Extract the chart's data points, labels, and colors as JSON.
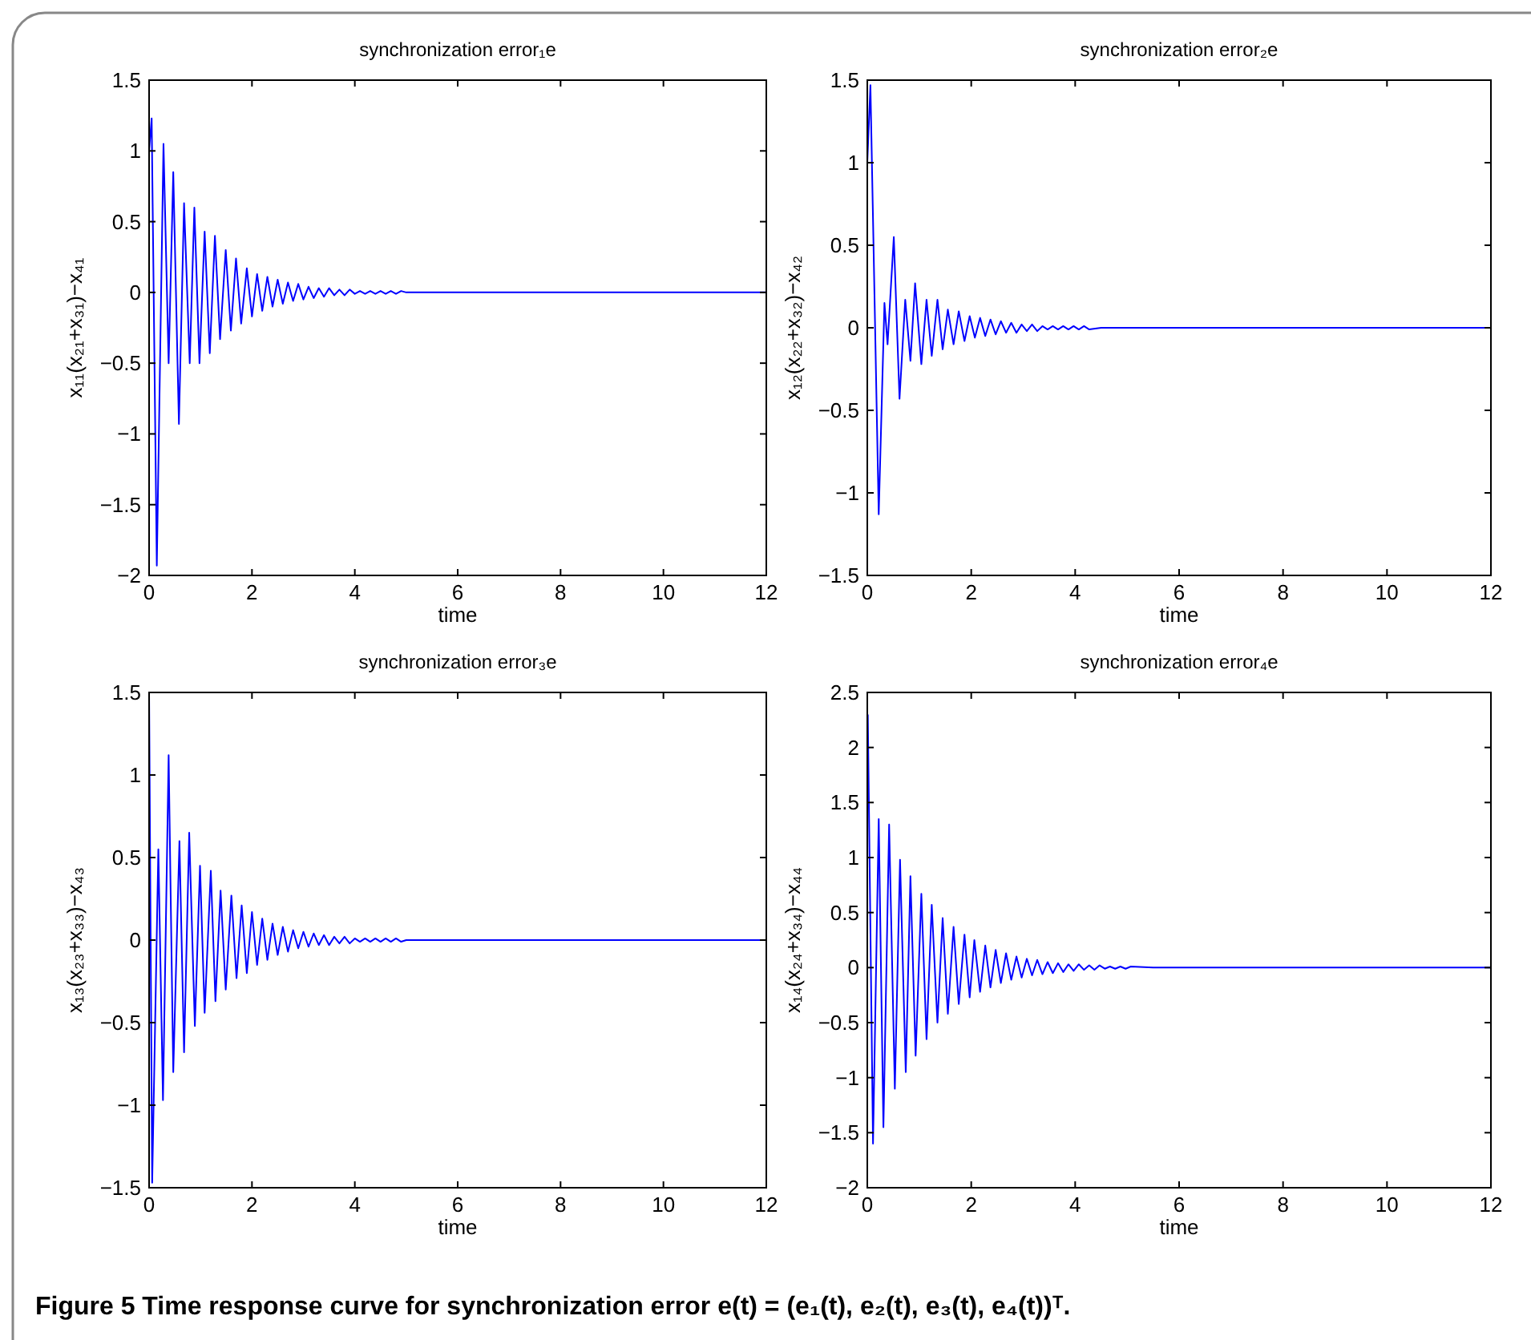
{
  "chart_data": [
    {
      "type": "line",
      "title": "synchronization error₁e",
      "xlabel": "time",
      "ylabel": "x₁₁(x₂₁+x₃₁)−x₄₁",
      "xlim": [
        0,
        12
      ],
      "xticks": [
        0,
        2,
        4,
        6,
        8,
        10,
        12
      ],
      "ylim": [
        -2,
        1.5
      ],
      "yticks": [
        -2,
        -1.5,
        -1,
        -0.5,
        0,
        0.5,
        1,
        1.5
      ],
      "series": [
        {
          "color": "#0000ff",
          "x": [
            0,
            0.05,
            0.15,
            0.28,
            0.38,
            0.47,
            0.58,
            0.68,
            0.79,
            0.88,
            0.98,
            1.08,
            1.18,
            1.28,
            1.38,
            1.49,
            1.59,
            1.69,
            1.79,
            1.9,
            2.0,
            2.1,
            2.2,
            2.3,
            2.4,
            2.5,
            2.6,
            2.7,
            2.8,
            2.9,
            3.0,
            3.1,
            3.2,
            3.3,
            3.4,
            3.5,
            3.6,
            3.7,
            3.8,
            3.9,
            4.0,
            4.1,
            4.2,
            4.3,
            4.4,
            4.5,
            4.6,
            4.7,
            4.8,
            4.9,
            5.0,
            12
          ],
          "values": [
            1.0,
            1.23,
            -1.93,
            1.05,
            -0.5,
            0.85,
            -0.93,
            0.63,
            -0.5,
            0.6,
            -0.5,
            0.43,
            -0.43,
            0.4,
            -0.33,
            0.3,
            -0.27,
            0.24,
            -0.22,
            0.17,
            -0.17,
            0.13,
            -0.13,
            0.11,
            -0.1,
            0.09,
            -0.08,
            0.07,
            -0.06,
            0.06,
            -0.05,
            0.04,
            -0.04,
            0.03,
            -0.03,
            0.03,
            -0.02,
            0.02,
            -0.02,
            0.02,
            -0.01,
            0.01,
            -0.01,
            0.01,
            -0.01,
            0.01,
            -0.01,
            0.01,
            -0.01,
            0.01,
            0,
            0
          ]
        }
      ]
    },
    {
      "type": "line",
      "title": "synchronization error₂e",
      "xlabel": "time",
      "ylabel": "x₁₂(x₂₂+x₃₂)−x₄₂",
      "xlim": [
        0,
        12
      ],
      "xticks": [
        0,
        2,
        4,
        6,
        8,
        10,
        12
      ],
      "ylim": [
        -1.5,
        1.5
      ],
      "yticks": [
        -1.5,
        -1,
        -0.5,
        0,
        0.5,
        1,
        1.5
      ],
      "series": [
        {
          "color": "#0000ff",
          "x": [
            0,
            0.06,
            0.22,
            0.33,
            0.39,
            0.51,
            0.62,
            0.73,
            0.83,
            0.92,
            1.04,
            1.14,
            1.24,
            1.35,
            1.45,
            1.55,
            1.66,
            1.76,
            1.87,
            1.97,
            2.07,
            2.17,
            2.27,
            2.37,
            2.47,
            2.57,
            2.67,
            2.77,
            2.87,
            2.97,
            3.07,
            3.17,
            3.27,
            3.37,
            3.47,
            3.57,
            3.67,
            3.77,
            3.87,
            3.97,
            4.07,
            4.17,
            4.27,
            4.5,
            12
          ],
          "values": [
            1.0,
            1.47,
            -1.13,
            0.15,
            -0.1,
            0.55,
            -0.43,
            0.17,
            -0.2,
            0.27,
            -0.22,
            0.17,
            -0.17,
            0.17,
            -0.13,
            0.11,
            -0.1,
            0.1,
            -0.08,
            0.07,
            -0.06,
            0.06,
            -0.05,
            0.05,
            -0.04,
            0.04,
            -0.03,
            0.03,
            -0.03,
            0.02,
            -0.02,
            0.02,
            -0.02,
            0.01,
            -0.01,
            0.01,
            -0.01,
            0.01,
            -0.01,
            0.01,
            -0.01,
            0.01,
            -0.01,
            0,
            0
          ]
        }
      ]
    },
    {
      "type": "line",
      "title": "synchronization error₃e",
      "xlabel": "time",
      "ylabel": "x₁₃(x₂₃+x₃₃)−x₄₃",
      "xlim": [
        0,
        12
      ],
      "xticks": [
        0,
        2,
        4,
        6,
        8,
        10,
        12
      ],
      "ylim": [
        -1.5,
        1.5
      ],
      "yticks": [
        -1.5,
        -1,
        -0.5,
        0,
        0.5,
        1,
        1.5
      ],
      "series": [
        {
          "color": "#0000ff",
          "x": [
            0,
            0.06,
            0.18,
            0.27,
            0.38,
            0.47,
            0.59,
            0.68,
            0.78,
            0.89,
            0.99,
            1.08,
            1.2,
            1.29,
            1.39,
            1.49,
            1.6,
            1.7,
            1.8,
            1.9,
            2.0,
            2.1,
            2.2,
            2.3,
            2.4,
            2.5,
            2.6,
            2.7,
            2.8,
            2.9,
            3.0,
            3.1,
            3.2,
            3.3,
            3.4,
            3.5,
            3.6,
            3.7,
            3.8,
            3.9,
            4.0,
            4.1,
            4.2,
            4.3,
            4.4,
            4.5,
            4.6,
            4.7,
            4.8,
            4.9,
            5.0,
            12
          ],
          "values": [
            1.5,
            -1.47,
            0.55,
            -0.97,
            1.12,
            -0.8,
            0.6,
            -0.68,
            0.65,
            -0.52,
            0.45,
            -0.44,
            0.42,
            -0.37,
            0.3,
            -0.3,
            0.27,
            -0.23,
            0.21,
            -0.2,
            0.17,
            -0.15,
            0.13,
            -0.12,
            0.1,
            -0.09,
            0.08,
            -0.07,
            0.06,
            -0.05,
            0.05,
            -0.04,
            0.04,
            -0.03,
            0.03,
            -0.03,
            0.02,
            -0.02,
            0.02,
            -0.02,
            0.01,
            -0.01,
            0.01,
            -0.01,
            0.01,
            -0.01,
            0.01,
            -0.01,
            0.01,
            -0.01,
            0,
            0
          ]
        }
      ]
    },
    {
      "type": "line",
      "title": "synchronization error₄e",
      "xlabel": "time",
      "ylabel": "x₁₄(x₂₄+x₃₄)−x₄₄",
      "xlim": [
        0,
        12
      ],
      "xticks": [
        0,
        2,
        4,
        6,
        8,
        10,
        12
      ],
      "ylim": [
        -2,
        2.5
      ],
      "yticks": [
        -2,
        -1.5,
        -1,
        -0.5,
        0,
        0.5,
        1,
        1.5,
        2,
        2.5
      ],
      "annotations": [
        "Figure 5  Time response curve for synchronization error e(t) = (e₁(t), e₂(t), e₃(t), e₄(t))ᵀ."
      ],
      "series": [
        {
          "color": "#0000ff",
          "x": [
            0.01,
            0.11,
            0.22,
            0.31,
            0.42,
            0.53,
            0.63,
            0.74,
            0.83,
            0.93,
            1.04,
            1.14,
            1.24,
            1.35,
            1.45,
            1.55,
            1.66,
            1.76,
            1.87,
            1.97,
            2.06,
            2.17,
            2.27,
            2.37,
            2.47,
            2.57,
            2.67,
            2.77,
            2.87,
            2.97,
            3.07,
            3.17,
            3.27,
            3.37,
            3.47,
            3.57,
            3.67,
            3.77,
            3.87,
            3.97,
            4.07,
            4.17,
            4.27,
            4.37,
            4.47,
            4.57,
            4.67,
            4.77,
            4.87,
            4.97,
            5.07,
            5.5,
            12
          ],
          "values": [
            2.3,
            -1.6,
            1.35,
            -1.45,
            1.3,
            -1.1,
            0.98,
            -0.95,
            0.83,
            -0.8,
            0.67,
            -0.65,
            0.57,
            -0.5,
            0.45,
            -0.42,
            0.37,
            -0.33,
            0.3,
            -0.27,
            0.25,
            -0.22,
            0.2,
            -0.18,
            0.16,
            -0.14,
            0.13,
            -0.11,
            0.1,
            -0.09,
            0.08,
            -0.07,
            0.07,
            -0.06,
            0.05,
            -0.05,
            0.04,
            -0.04,
            0.03,
            -0.03,
            0.03,
            -0.02,
            0.02,
            -0.02,
            0.02,
            -0.01,
            0.01,
            -0.01,
            0.01,
            -0.01,
            0.01,
            0,
            0
          ]
        }
      ]
    }
  ]
}
